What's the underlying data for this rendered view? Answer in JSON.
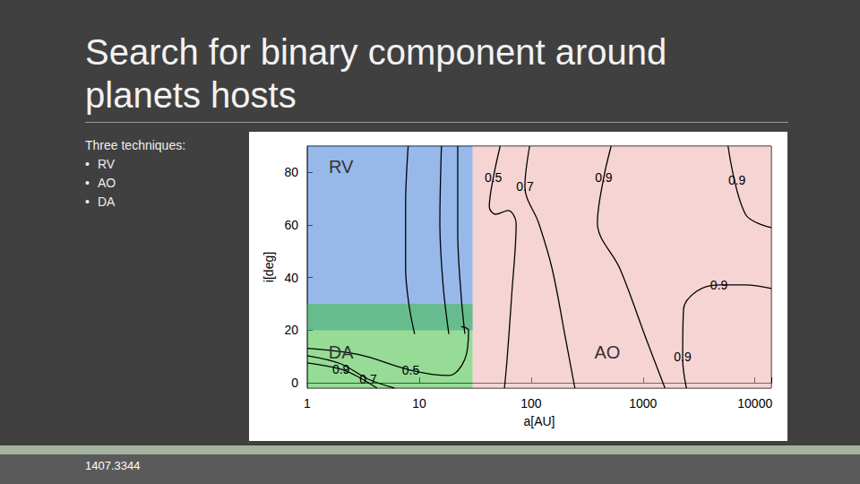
{
  "slide": {
    "title": "Search for binary component around planets hosts",
    "intro": "Three techniques:",
    "bullets": [
      "RV",
      "AO",
      "DA"
    ],
    "footer": "1407.3344"
  },
  "chart_data": {
    "type": "contour",
    "x_label": "a[AU]",
    "y_label": "i[deg]",
    "log": "x",
    "xlim": [
      1,
      14000
    ],
    "xticks": [
      1,
      10,
      100,
      1000,
      10000
    ],
    "ylim": [
      -2,
      90
    ],
    "yticks": [
      0,
      20,
      40,
      60,
      80
    ],
    "grid": false,
    "color": "#000000",
    "regions": [
      {
        "name": "AO",
        "color": "#eeb0b0",
        "x": [
          30,
          14000
        ],
        "y": [
          -2,
          90
        ],
        "label_x": 480,
        "label_y": 11.5
      },
      {
        "name": "RV",
        "color": "#3f7fd8",
        "x": [
          1,
          30
        ],
        "y": [
          20,
          90
        ],
        "label_x": 2.0,
        "label_y": 82
      },
      {
        "name": "DA",
        "color": "#3fc03f",
        "x": [
          1,
          30
        ],
        "y": [
          -2,
          30
        ],
        "label_x": 2.0,
        "label_y": 11.5
      }
    ],
    "contours": [
      {
        "level": 0.9,
        "points": [
          [
            7.97,
            90
          ],
          [
            7.56,
            67.6
          ],
          [
            7.56,
            43.4
          ],
          [
            8.1,
            29.7
          ],
          [
            9.1,
            18.6
          ]
        ]
      },
      {
        "level": 0.7,
        "points": [
          [
            15.8,
            90
          ],
          [
            15.3,
            60.7
          ],
          [
            16.4,
            36.6
          ],
          [
            18.4,
            18.6
          ]
        ]
      },
      {
        "level": 0.5,
        "points": [
          [
            22.1,
            90
          ],
          [
            22.1,
            57.2
          ],
          [
            23.7,
            33.1
          ],
          [
            25.6,
            18.6
          ]
        ]
      },
      {
        "level": 0.9,
        "points": [
          [
            1,
            7.6
          ],
          [
            2.0,
            5.2
          ],
          [
            2.9,
            2.1
          ],
          [
            4.2,
            -2
          ]
        ]
      },
      {
        "level": 0.7,
        "points": [
          [
            1,
            10.3
          ],
          [
            2.0,
            7.2
          ],
          [
            3.5,
            1.4
          ],
          [
            6.0,
            -2
          ]
        ]
      },
      {
        "level": 0.5,
        "points": [
          [
            1,
            13.1
          ],
          [
            2.9,
            10.7
          ],
          [
            8.4,
            4.8
          ],
          [
            18.4,
            2.8
          ],
          [
            25.6,
            9
          ],
          [
            27.6,
            20
          ],
          [
            23.7,
            21.4
          ]
        ]
      },
      {
        "level": 0.5,
        "points": [
          [
            52.9,
            90
          ],
          [
            45.9,
            77.9
          ],
          [
            42.3,
            66.9
          ],
          [
            48.1,
            64.1
          ],
          [
            62.3,
            65.5
          ],
          [
            73.5,
            60.7
          ],
          [
            67,
            33.1
          ],
          [
            61,
            9
          ],
          [
            57.8,
            -2
          ]
        ]
      },
      {
        "level": 0.7,
        "points": [
          [
            97,
            90
          ],
          [
            88,
            74.5
          ],
          [
            117,
            60.7
          ],
          [
            154,
            43.4
          ],
          [
            205,
            15.9
          ],
          [
            246,
            -2
          ]
        ]
      },
      {
        "level": 0.9,
        "points": [
          [
            519,
            90
          ],
          [
            445,
            77.9
          ],
          [
            391,
            60.7
          ],
          [
            622,
            43.4
          ],
          [
            1084,
            15.9
          ],
          [
            1570,
            -2
          ]
        ]
      },
      {
        "level": 0.9,
        "points": [
          [
            5750,
            90
          ],
          [
            8240,
            64
          ],
          [
            14000,
            59
          ]
        ]
      },
      {
        "level": 0.9,
        "points": [
          [
            14000,
            35.9
          ],
          [
            8240,
            37.2
          ],
          [
            4770,
            37.2
          ],
          [
            3010,
            34.8
          ],
          [
            2300,
            27.9
          ],
          [
            2260,
            9
          ],
          [
            2440,
            -2
          ]
        ]
      }
    ],
    "contour_labels": [
      {
        "value": 0.9,
        "x": 2.0,
        "y": 5.2
      },
      {
        "value": 0.7,
        "x": 3.5,
        "y": 1.4
      },
      {
        "value": 0.5,
        "x": 8.4,
        "y": 4.8
      },
      {
        "value": 0.5,
        "x": 45.9,
        "y": 78
      },
      {
        "value": 0.7,
        "x": 88,
        "y": 74.5
      },
      {
        "value": 0.9,
        "x": 445,
        "y": 78
      },
      {
        "value": 0.9,
        "x": 6900,
        "y": 77
      },
      {
        "value": 0.9,
        "x": 4770,
        "y": 37.2
      },
      {
        "value": 0.9,
        "x": 2260,
        "y": 10
      }
    ]
  }
}
